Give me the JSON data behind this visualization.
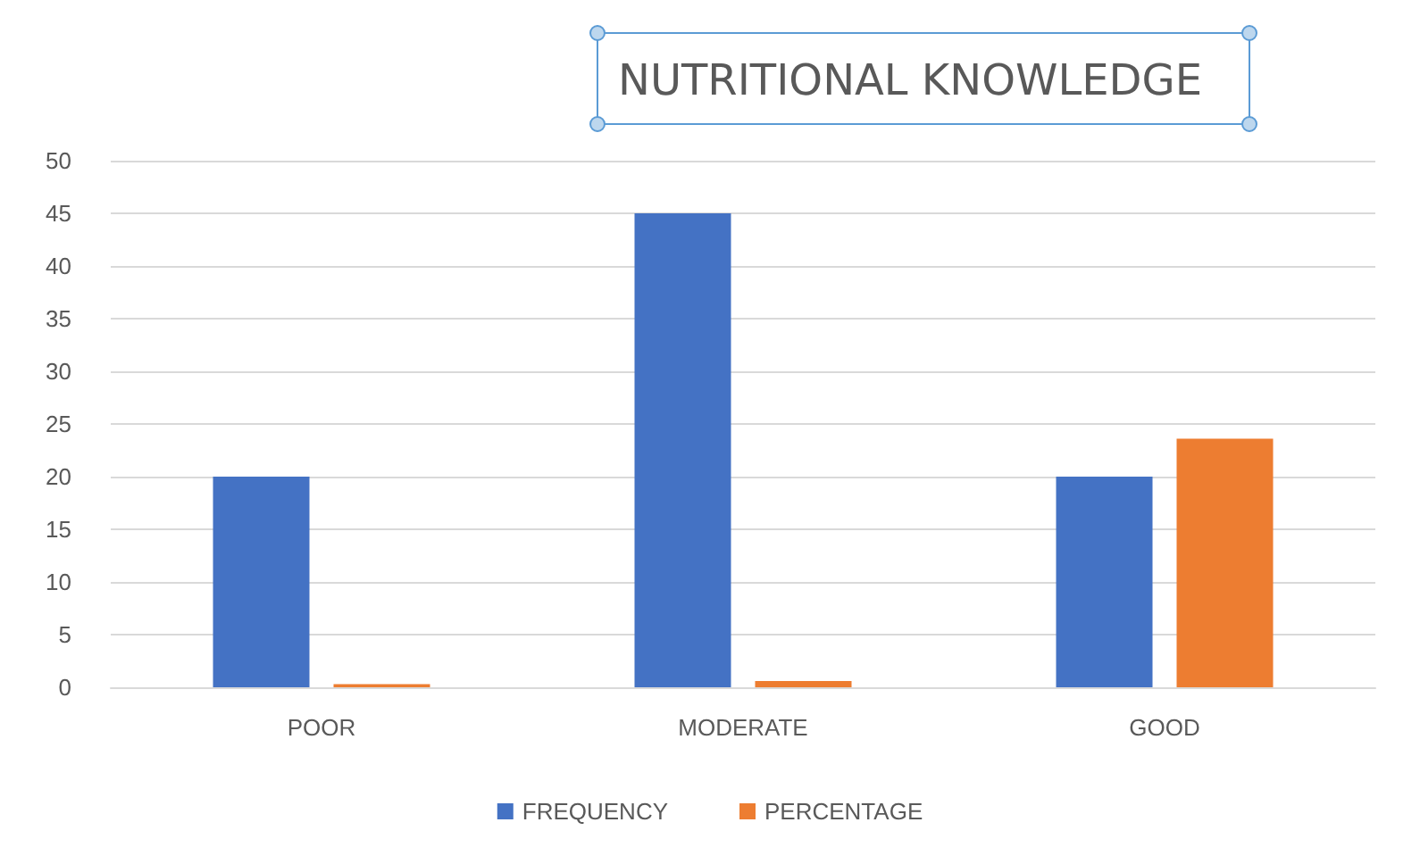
{
  "chart_data": {
    "type": "bar",
    "title": "NUTRITIONAL KNOWLEDGE",
    "categories": [
      "POOR",
      "MODERATE",
      "GOOD"
    ],
    "series": [
      {
        "name": "FREQUENCY",
        "color": "#4472c4",
        "values": [
          20,
          45,
          20
        ]
      },
      {
        "name": "PERCENTAGE",
        "color": "#ed7d31",
        "values": [
          0.3,
          0.6,
          23.6
        ]
      }
    ],
    "ylim": [
      0,
      50
    ],
    "yticks": [
      0,
      5,
      10,
      15,
      20,
      25,
      30,
      35,
      40,
      45,
      50
    ],
    "grid": "y",
    "legend": "bottom"
  }
}
